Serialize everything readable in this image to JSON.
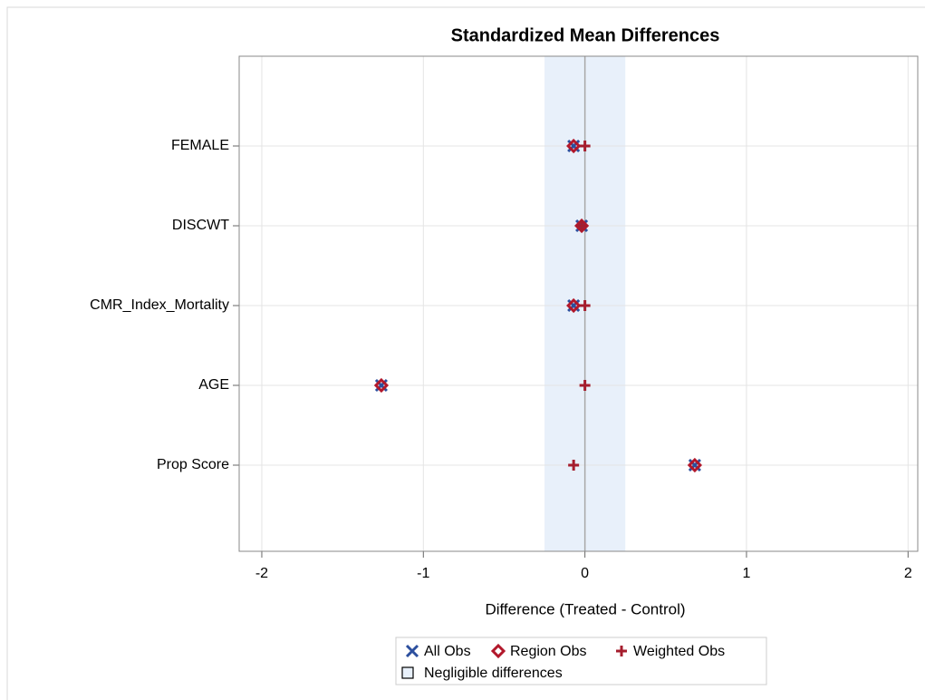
{
  "chart_data": {
    "type": "scatter",
    "title": "Standardized Mean Differences",
    "x_label": "Difference (Treated - Control)",
    "categories": [
      "FEMALE",
      "DISCWT",
      "CMR_Index_Mortality",
      "AGE",
      "Prop Score"
    ],
    "xlim": [
      -2.14,
      2.06
    ],
    "xticks": [
      -2,
      -1,
      0,
      1,
      2
    ],
    "grid": true,
    "reference_x": 0,
    "band": {
      "name": "Negligible differences",
      "range": [
        -0.25,
        0.25
      ],
      "color": "#e8f0fa"
    },
    "series": [
      {
        "name": "All Obs",
        "marker": "x",
        "color": "#2c4f9e",
        "values": [
          -0.07,
          -0.02,
          -0.07,
          -1.26,
          0.68
        ]
      },
      {
        "name": "Region Obs",
        "marker": "diamond",
        "color": "#b2182b",
        "values": [
          -0.07,
          -0.02,
          -0.07,
          -1.26,
          0.68
        ]
      },
      {
        "name": "Weighted Obs",
        "marker": "plus",
        "color": "#a51d2d",
        "values": [
          0.0,
          -0.02,
          0.0,
          0.0,
          -0.07
        ]
      }
    ]
  }
}
